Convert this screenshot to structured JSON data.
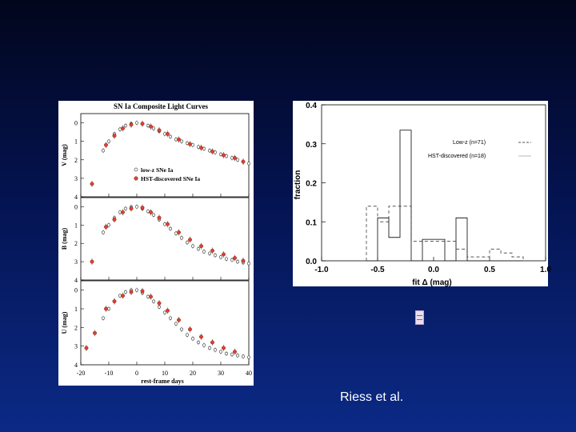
{
  "slide": {
    "credit": "Riess et al."
  },
  "chart_data": [
    {
      "type": "scatter",
      "title": "SN Ia Composite Light Curves",
      "xlabel": "rest-frame days",
      "x_ticks": [
        -20,
        -10,
        0,
        10,
        20,
        30,
        40
      ],
      "xlim": [
        -20,
        40
      ],
      "legend": [
        "low-z SNe Ia",
        "HST-discovered SNe Ia"
      ],
      "panels": [
        {
          "ylabel": "V (mag)",
          "y_ticks": [
            0,
            1,
            2,
            3,
            4
          ],
          "ylim": [
            4,
            -0.5
          ],
          "low_z": {
            "x": [
              -12,
              -10,
              -8,
              -6,
              -4,
              -2,
              0,
              2,
              4,
              6,
              8,
              10,
              12,
              14,
              16,
              18,
              20,
              22,
              24,
              26,
              28,
              30,
              32,
              34,
              36,
              38,
              40
            ],
            "y": [
              1.5,
              1.0,
              0.6,
              0.35,
              0.15,
              0.05,
              0.0,
              0.05,
              0.15,
              0.3,
              0.45,
              0.6,
              0.75,
              0.9,
              1.0,
              1.1,
              1.2,
              1.3,
              1.4,
              1.5,
              1.6,
              1.7,
              1.8,
              1.9,
              2.0,
              2.1,
              2.2
            ]
          },
          "hst": {
            "x": [
              -16,
              -11,
              -8,
              -5,
              -2,
              2,
              5,
              8,
              11,
              15,
              19,
              23,
              27,
              31,
              35,
              38
            ],
            "y": [
              3.3,
              1.2,
              0.7,
              0.3,
              0.1,
              0.05,
              0.2,
              0.4,
              0.6,
              0.9,
              1.15,
              1.35,
              1.55,
              1.75,
              1.9,
              2.1
            ]
          }
        },
        {
          "ylabel": "B (mag)",
          "y_ticks": [
            0,
            1,
            2,
            3,
            4
          ],
          "ylim": [
            4,
            -0.5
          ],
          "low_z": {
            "x": [
              -12,
              -10,
              -8,
              -6,
              -4,
              -2,
              0,
              2,
              4,
              6,
              8,
              10,
              12,
              14,
              16,
              18,
              20,
              22,
              24,
              26,
              28,
              30,
              32,
              34,
              36,
              38,
              40
            ],
            "y": [
              1.4,
              1.0,
              0.6,
              0.3,
              0.1,
              0.02,
              0.0,
              0.1,
              0.25,
              0.45,
              0.7,
              0.95,
              1.2,
              1.45,
              1.7,
              1.95,
              2.15,
              2.3,
              2.45,
              2.55,
              2.65,
              2.75,
              2.85,
              2.9,
              3.0,
              3.05,
              3.1
            ]
          },
          "hst": {
            "x": [
              -16,
              -11,
              -8,
              -5,
              -2,
              2,
              5,
              8,
              11,
              15,
              19,
              23,
              27,
              31,
              35,
              38
            ],
            "y": [
              3.0,
              1.1,
              0.7,
              0.3,
              0.1,
              0.05,
              0.3,
              0.6,
              0.95,
              1.4,
              1.8,
              2.15,
              2.4,
              2.6,
              2.8,
              2.95
            ]
          }
        },
        {
          "ylabel": "U (mag)",
          "y_ticks": [
            0,
            1,
            2,
            3,
            4
          ],
          "ylim": [
            4,
            -0.5
          ],
          "low_z": {
            "x": [
              -12,
              -10,
              -8,
              -6,
              -4,
              -2,
              0,
              2,
              4,
              6,
              8,
              10,
              12,
              14,
              16,
              18,
              20,
              22,
              24,
              26,
              28,
              30,
              32,
              34,
              36,
              38,
              40
            ],
            "y": [
              1.5,
              1.0,
              0.6,
              0.3,
              0.1,
              0.0,
              0.0,
              0.15,
              0.35,
              0.6,
              0.9,
              1.2,
              1.5,
              1.8,
              2.1,
              2.4,
              2.6,
              2.8,
              2.95,
              3.1,
              3.2,
              3.3,
              3.4,
              3.45,
              3.5,
              3.55,
              3.6
            ]
          },
          "hst": {
            "x": [
              -18,
              -15,
              -11,
              -8,
              -5,
              -2,
              2,
              5,
              8,
              11,
              15,
              19,
              23,
              27,
              31,
              35
            ],
            "y": [
              3.1,
              2.3,
              1.0,
              0.6,
              0.3,
              0.1,
              0.05,
              0.35,
              0.7,
              1.1,
              1.6,
              2.1,
              2.5,
              2.8,
              3.1,
              3.3
            ]
          }
        }
      ]
    },
    {
      "type": "step-histogram",
      "xlabel": "fit Δ (mag)",
      "ylabel": "fraction",
      "xlim": [
        -1.0,
        1.0
      ],
      "ylim": [
        0.0,
        0.4
      ],
      "x_ticks": [
        "-1.0",
        "-0.5",
        "0.0",
        "0.5",
        "1.0"
      ],
      "y_ticks": [
        "0.0",
        "0.1",
        "0.2",
        "0.3",
        "0.4"
      ],
      "bin_edges": [
        -0.6,
        -0.5,
        -0.4,
        -0.3,
        -0.2,
        -0.1,
        0.0,
        0.1,
        0.2,
        0.3,
        0.4,
        0.5,
        0.6,
        0.7,
        0.8
      ],
      "series": [
        {
          "name": "Low-z (n=71)",
          "style": "dashed",
          "values": [
            0.14,
            0.1,
            0.14,
            0.14,
            0.05,
            0.05,
            0.05,
            0.05,
            0.03,
            0.01,
            0.01,
            0.03,
            0.02,
            0.01
          ]
        },
        {
          "name": "HST-discovered (n=18)",
          "style": "solid",
          "values": [
            0.0,
            0.11,
            0.06,
            0.335,
            0.0,
            0.055,
            0.055,
            0.0,
            0.11,
            0.0,
            0.0,
            0.0,
            0.0,
            0.0
          ]
        }
      ]
    }
  ]
}
